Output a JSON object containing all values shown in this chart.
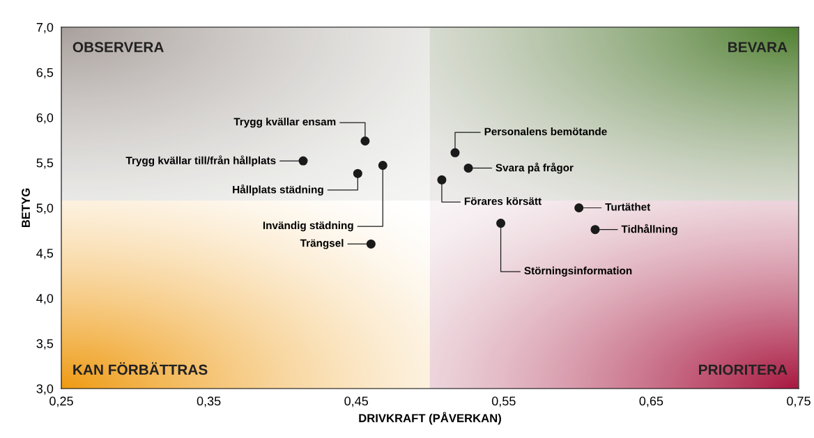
{
  "chart_data": {
    "type": "scatter",
    "xlabel": "DRIVKRAFT (PÅVERKAN)",
    "ylabel": "BETYG",
    "x": [
      0.456,
      0.414,
      0.451,
      0.468,
      0.46,
      0.517,
      0.526,
      0.508,
      0.548,
      0.601,
      0.612
    ],
    "series": [
      {
        "color": "#1a1a1a",
        "values": [
          5.74,
          5.52,
          5.38,
          5.47,
          4.6,
          5.61,
          5.44,
          5.31,
          4.83,
          5.0,
          4.76
        ]
      }
    ],
    "marker": "circle",
    "xlim": [
      0.25,
      0.75
    ],
    "ylim": [
      3.0,
      7.0
    ],
    "xticks": [
      {
        "value": 0.25,
        "label": "0,25"
      },
      {
        "value": 0.35,
        "label": "0,35"
      },
      {
        "value": 0.45,
        "label": "0,45"
      },
      {
        "value": 0.55,
        "label": "0,55"
      },
      {
        "value": 0.65,
        "label": "0,65"
      },
      {
        "value": 0.75,
        "label": "0,75"
      }
    ],
    "yticks": [
      {
        "value": 3.0,
        "label": "3,0"
      },
      {
        "value": 3.5,
        "label": "3,5"
      },
      {
        "value": 4.0,
        "label": "4,0"
      },
      {
        "value": 4.5,
        "label": "4,5"
      },
      {
        "value": 5.0,
        "label": "5,0"
      },
      {
        "value": 5.5,
        "label": "5,5"
      },
      {
        "value": 6.0,
        "label": "6,0"
      },
      {
        "value": 6.5,
        "label": "6,5"
      },
      {
        "value": 7.0,
        "label": "7,0"
      }
    ],
    "bands": [
      {
        "axis": "x",
        "from": 0.5,
        "to": 0.75,
        "color": "#c8a0b0"
      },
      {
        "axis": "y",
        "from": 5.08,
        "to": 7.0,
        "color": "#a8b0a0"
      }
    ],
    "grid": false,
    "legend": false,
    "annotations": [
      {
        "text": "Trygg kvällar ensam",
        "x": 0.456,
        "y": 5.74
      },
      {
        "text": "Trygg kvällar till/från hållplats",
        "x": 0.414,
        "y": 5.52
      },
      {
        "text": "Hållplats städning",
        "x": 0.451,
        "y": 5.38
      },
      {
        "text": "Invändig städning",
        "x": 0.468,
        "y": 5.47
      },
      {
        "text": "Trängsel",
        "x": 0.46,
        "y": 4.6
      },
      {
        "text": "Personalens bemötande",
        "x": 0.517,
        "y": 5.61
      },
      {
        "text": "Svara på frågor",
        "x": 0.526,
        "y": 5.44
      },
      {
        "text": "Förares körsätt",
        "x": 0.508,
        "y": 5.31
      },
      {
        "text": "Störningsinformation",
        "x": 0.548,
        "y": 4.83
      },
      {
        "text": "Turtäthet",
        "x": 0.601,
        "y": 5.0
      },
      {
        "text": "Tidhållning",
        "x": 0.612,
        "y": 4.76
      },
      "OBSERVERA",
      "BEVARA",
      "KAN FÖRBÄTTRAS",
      "PRIORITERA"
    ]
  }
}
